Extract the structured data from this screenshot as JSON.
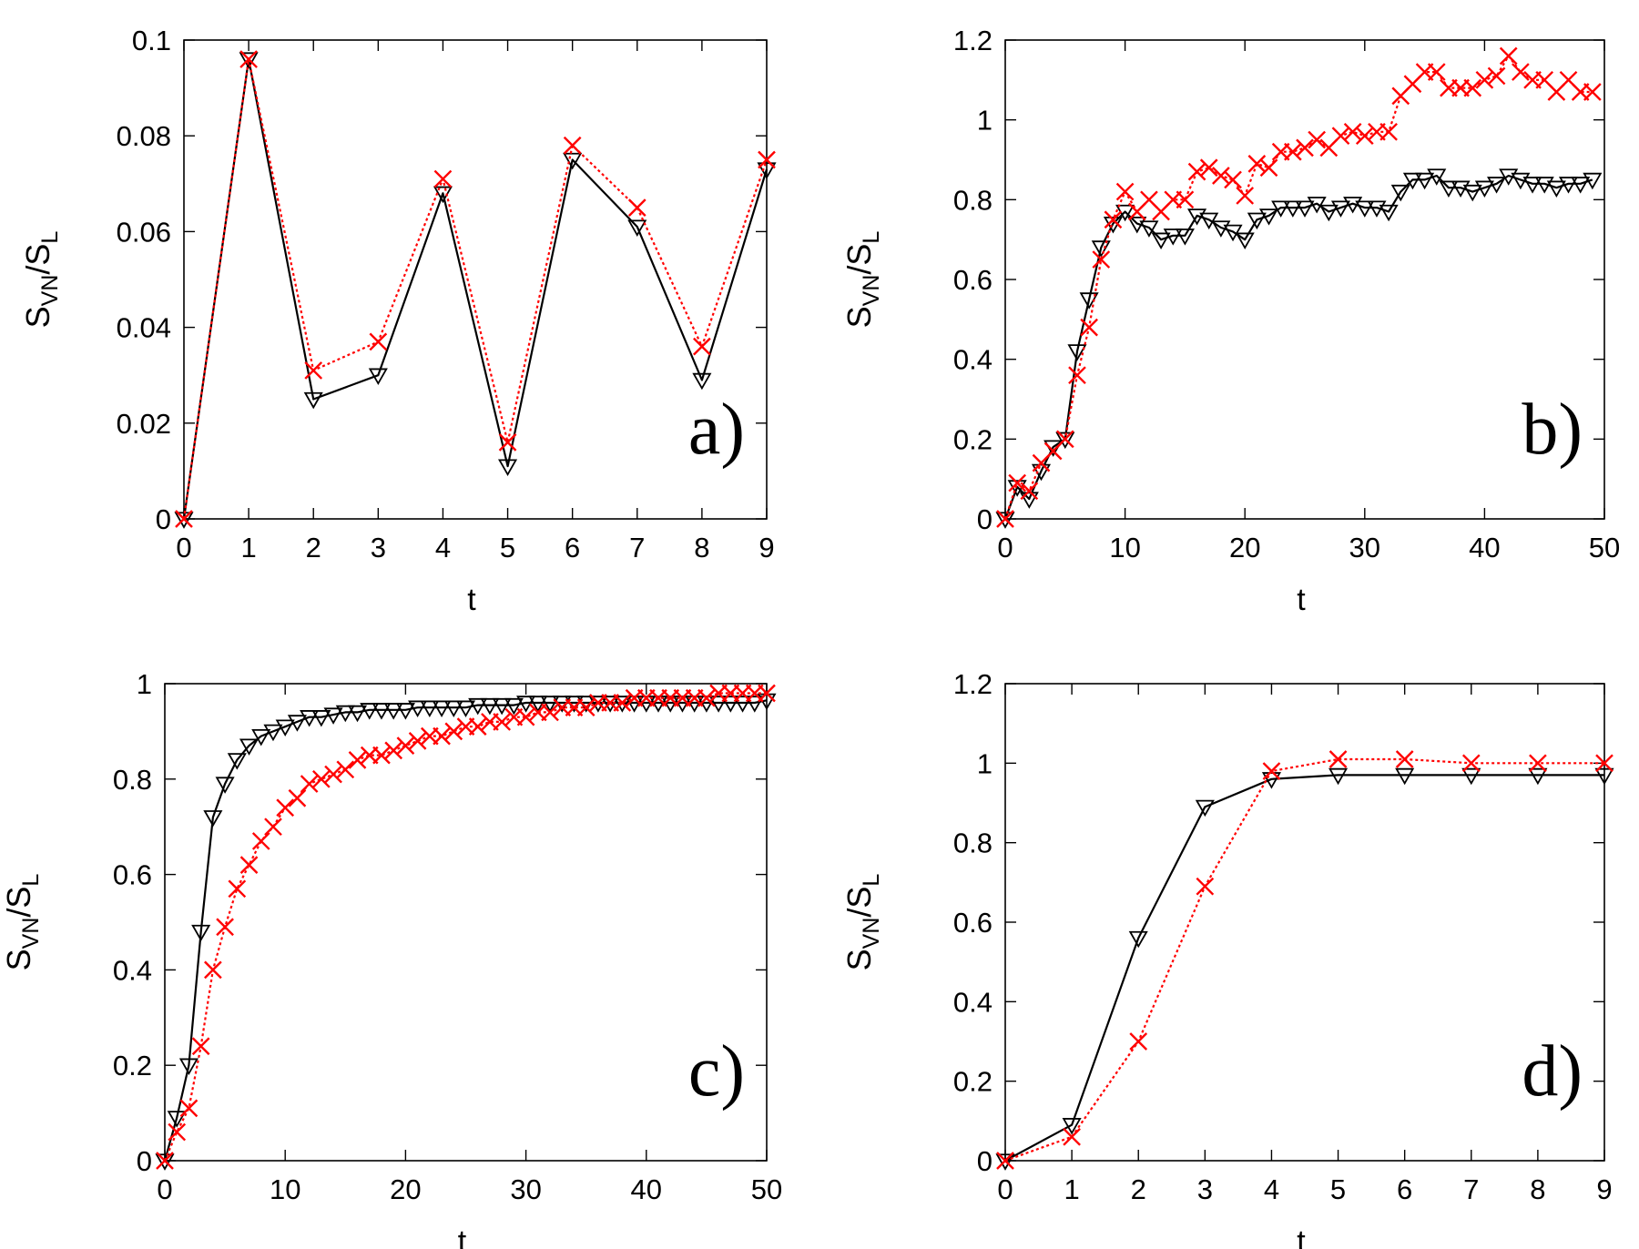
{
  "chart_data": [
    {
      "type": "line",
      "panel_label": "a)",
      "xlabel": "t",
      "ylabel_main": "S",
      "ylabel_sub1": "VN",
      "ylabel_sep": "/S",
      "ylabel_sub2": "L",
      "xlim": [
        0,
        9
      ],
      "ylim": [
        0,
        0.1
      ],
      "xticks": [
        0,
        1,
        2,
        3,
        4,
        5,
        6,
        7,
        8,
        9
      ],
      "yticks": [
        0,
        0.02,
        0.04,
        0.06,
        0.08,
        0.1
      ],
      "series": [
        {
          "name": "black triangles",
          "color": "#000000",
          "marker": "triangle-down",
          "dash": "solid",
          "x": [
            0,
            1,
            2,
            3,
            4,
            5,
            6,
            7,
            8,
            9
          ],
          "y": [
            0,
            0.096,
            0.025,
            0.03,
            0.068,
            0.011,
            0.075,
            0.061,
            0.029,
            0.073
          ]
        },
        {
          "name": "red crosses",
          "color": "#ff0000",
          "marker": "cross",
          "dash": "dotted",
          "x": [
            0,
            1,
            2,
            3,
            4,
            5,
            6,
            7,
            8,
            9
          ],
          "y": [
            0,
            0.096,
            0.031,
            0.037,
            0.071,
            0.016,
            0.078,
            0.065,
            0.036,
            0.075
          ]
        }
      ]
    },
    {
      "type": "line",
      "panel_label": "b)",
      "xlabel": "t",
      "ylabel_main": "S",
      "ylabel_sub1": "VN",
      "ylabel_sep": "/S",
      "ylabel_sub2": "L",
      "xlim": [
        0,
        50
      ],
      "ylim": [
        0,
        1.2
      ],
      "xticks": [
        0,
        10,
        20,
        30,
        40,
        50
      ],
      "yticks": [
        0,
        0.2,
        0.4,
        0.6,
        0.8,
        1,
        1.2
      ],
      "series": [
        {
          "name": "black triangles",
          "color": "#000000",
          "marker": "triangle-down",
          "dash": "solid",
          "x": [
            0,
            1,
            2,
            3,
            4,
            5,
            6,
            7,
            8,
            9,
            10,
            11,
            12,
            13,
            14,
            15,
            16,
            17,
            18,
            19,
            20,
            21,
            22,
            23,
            24,
            25,
            26,
            27,
            28,
            29,
            30,
            31,
            32,
            33,
            34,
            35,
            36,
            37,
            38,
            39,
            40,
            41,
            42,
            43,
            44,
            45,
            46,
            47,
            48,
            49
          ],
          "y": [
            0,
            0.08,
            0.05,
            0.12,
            0.18,
            0.2,
            0.42,
            0.55,
            0.68,
            0.74,
            0.77,
            0.74,
            0.73,
            0.7,
            0.71,
            0.71,
            0.76,
            0.75,
            0.73,
            0.72,
            0.7,
            0.75,
            0.76,
            0.78,
            0.78,
            0.78,
            0.79,
            0.77,
            0.78,
            0.79,
            0.78,
            0.78,
            0.77,
            0.82,
            0.85,
            0.85,
            0.86,
            0.83,
            0.83,
            0.82,
            0.83,
            0.84,
            0.86,
            0.85,
            0.84,
            0.84,
            0.83,
            0.84,
            0.84,
            0.85
          ]
        },
        {
          "name": "red crosses",
          "color": "#ff0000",
          "marker": "cross",
          "dash": "dotted",
          "x": [
            0,
            1,
            2,
            3,
            4,
            5,
            6,
            7,
            8,
            9,
            10,
            11,
            12,
            13,
            14,
            15,
            16,
            17,
            18,
            19,
            20,
            21,
            22,
            23,
            24,
            25,
            26,
            27,
            28,
            29,
            30,
            31,
            32,
            33,
            34,
            35,
            36,
            37,
            38,
            39,
            40,
            41,
            42,
            43,
            44,
            45,
            46,
            47,
            48,
            49
          ],
          "y": [
            0,
            0.09,
            0.07,
            0.14,
            0.17,
            0.2,
            0.36,
            0.48,
            0.65,
            0.75,
            0.82,
            0.77,
            0.8,
            0.77,
            0.8,
            0.8,
            0.87,
            0.88,
            0.86,
            0.85,
            0.81,
            0.89,
            0.88,
            0.92,
            0.92,
            0.93,
            0.95,
            0.93,
            0.96,
            0.97,
            0.96,
            0.97,
            0.97,
            1.06,
            1.09,
            1.12,
            1.12,
            1.08,
            1.08,
            1.08,
            1.1,
            1.11,
            1.16,
            1.12,
            1.1,
            1.1,
            1.07,
            1.1,
            1.07,
            1.07
          ]
        }
      ]
    },
    {
      "type": "line",
      "panel_label": "c)",
      "xlabel": "t",
      "ylabel_main": "S",
      "ylabel_sub1": "VN",
      "ylabel_sep": "/S",
      "ylabel_sub2": "L",
      "xlim": [
        0,
        50
      ],
      "ylim": [
        0,
        1
      ],
      "xticks": [
        0,
        10,
        20,
        30,
        40,
        50
      ],
      "yticks": [
        0,
        0.2,
        0.4,
        0.6,
        0.8,
        1
      ],
      "series": [
        {
          "name": "black triangles",
          "color": "#000000",
          "marker": "triangle-down",
          "dash": "solid",
          "x": [
            0,
            1,
            2,
            3,
            4,
            5,
            6,
            7,
            8,
            9,
            10,
            11,
            12,
            13,
            14,
            15,
            16,
            17,
            18,
            19,
            20,
            21,
            22,
            23,
            24,
            25,
            26,
            27,
            28,
            29,
            30,
            31,
            32,
            33,
            34,
            35,
            36,
            37,
            38,
            39,
            40,
            41,
            42,
            43,
            44,
            45,
            46,
            47,
            48,
            49,
            50
          ],
          "y": [
            0,
            0.09,
            0.2,
            0.48,
            0.72,
            0.79,
            0.84,
            0.87,
            0.89,
            0.9,
            0.91,
            0.92,
            0.93,
            0.93,
            0.935,
            0.94,
            0.94,
            0.945,
            0.945,
            0.945,
            0.945,
            0.95,
            0.95,
            0.95,
            0.95,
            0.95,
            0.955,
            0.955,
            0.955,
            0.955,
            0.96,
            0.96,
            0.96,
            0.96,
            0.96,
            0.96,
            0.96,
            0.96,
            0.96,
            0.96,
            0.96,
            0.96,
            0.96,
            0.96,
            0.96,
            0.96,
            0.96,
            0.96,
            0.96,
            0.96,
            0.965
          ]
        },
        {
          "name": "red crosses",
          "color": "#ff0000",
          "marker": "cross",
          "dash": "dotted",
          "x": [
            0,
            1,
            2,
            3,
            4,
            5,
            6,
            7,
            8,
            9,
            10,
            11,
            12,
            13,
            14,
            15,
            16,
            17,
            18,
            19,
            20,
            21,
            22,
            23,
            24,
            25,
            26,
            27,
            28,
            29,
            30,
            31,
            32,
            33,
            34,
            35,
            36,
            37,
            38,
            39,
            40,
            41,
            42,
            43,
            44,
            45,
            46,
            47,
            48,
            49,
            50
          ],
          "y": [
            0,
            0.06,
            0.11,
            0.24,
            0.4,
            0.49,
            0.57,
            0.62,
            0.67,
            0.7,
            0.74,
            0.76,
            0.79,
            0.8,
            0.81,
            0.82,
            0.84,
            0.85,
            0.85,
            0.86,
            0.87,
            0.88,
            0.89,
            0.89,
            0.9,
            0.91,
            0.91,
            0.92,
            0.92,
            0.93,
            0.93,
            0.94,
            0.94,
            0.95,
            0.95,
            0.95,
            0.96,
            0.96,
            0.96,
            0.97,
            0.97,
            0.97,
            0.97,
            0.97,
            0.97,
            0.97,
            0.98,
            0.98,
            0.98,
            0.98,
            0.98
          ]
        }
      ]
    },
    {
      "type": "line",
      "panel_label": "d)",
      "xlabel": "t",
      "ylabel_main": "S",
      "ylabel_sub1": "VN",
      "ylabel_sep": "/S",
      "ylabel_sub2": "L",
      "xlim": [
        0,
        9
      ],
      "ylim": [
        0,
        1.2
      ],
      "xticks": [
        0,
        1,
        2,
        3,
        4,
        5,
        6,
        7,
        8,
        9
      ],
      "yticks": [
        0,
        0.2,
        0.4,
        0.6,
        0.8,
        1,
        1.2
      ],
      "series": [
        {
          "name": "black triangles",
          "color": "#000000",
          "marker": "triangle-down",
          "dash": "solid",
          "x": [
            0,
            1,
            2,
            3,
            4,
            5,
            6,
            7,
            8,
            9
          ],
          "y": [
            0,
            0.09,
            0.56,
            0.89,
            0.96,
            0.97,
            0.97,
            0.97,
            0.97,
            0.97
          ]
        },
        {
          "name": "red crosses",
          "color": "#ff0000",
          "marker": "cross",
          "dash": "dotted",
          "x": [
            0,
            1,
            2,
            3,
            4,
            5,
            6,
            7,
            8,
            9
          ],
          "y": [
            0,
            0.06,
            0.3,
            0.69,
            0.98,
            1.01,
            1.01,
            1.0,
            1.0,
            1.0
          ]
        }
      ]
    }
  ]
}
